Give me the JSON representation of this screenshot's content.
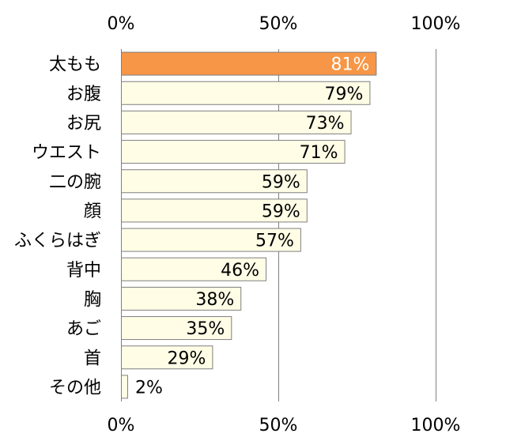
{
  "chart_data": {
    "type": "bar",
    "orientation": "horizontal",
    "categories": [
      "太もも",
      "お腹",
      "お尻",
      "ウエスト",
      "二の腕",
      "顔",
      "ふくらはぎ",
      "背中",
      "胸",
      "あご",
      "首",
      "その他"
    ],
    "values": [
      81,
      79,
      73,
      71,
      59,
      59,
      57,
      46,
      38,
      35,
      29,
      2
    ],
    "data_labels": [
      "81%",
      "79%",
      "73%",
      "71%",
      "59%",
      "59%",
      "57%",
      "46%",
      "38%",
      "35%",
      "29%",
      "2%"
    ],
    "highlight_index": 0,
    "x_ticks": [
      "0%",
      "50%",
      "100%"
    ],
    "xlim": [
      0,
      100
    ],
    "grid": true,
    "tick_positions": "top-and-bottom",
    "colors": {
      "bar_fill": "#fffde6",
      "bar_stroke": "#7f7f7f",
      "highlight_fill": "#f79646",
      "highlight_label": "#ffffff",
      "gridline": "#808080"
    }
  }
}
